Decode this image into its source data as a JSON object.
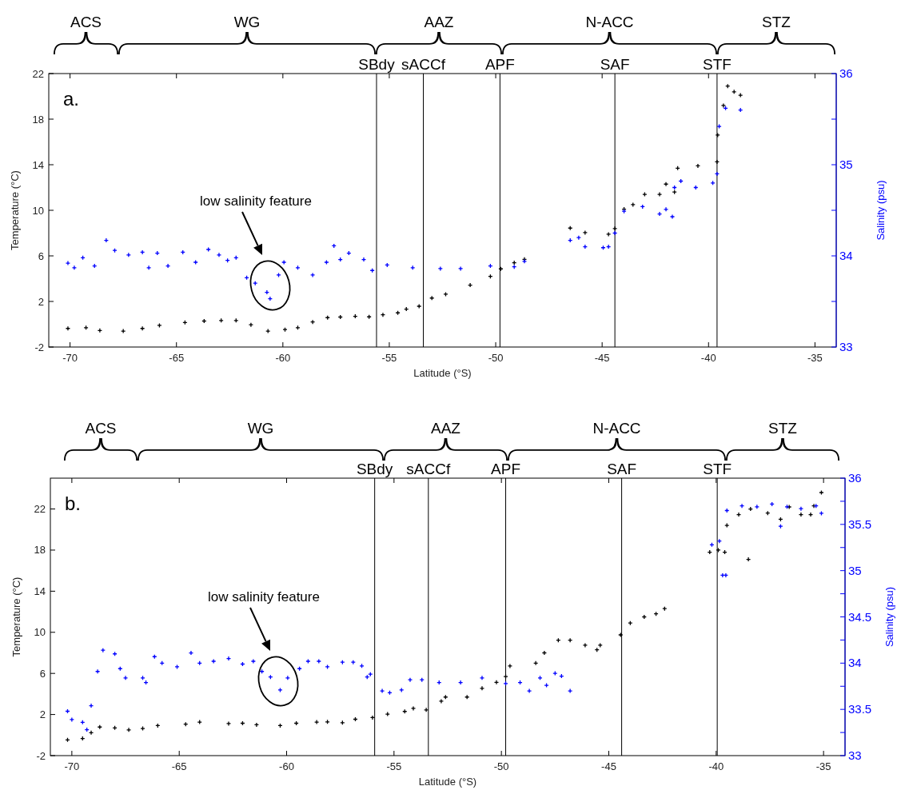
{
  "chart_data": [
    {
      "type": "scatter",
      "xlabel": "Latitude (°S)",
      "ylabel": "Temperature (°C)",
      "y2label": "Salinity (psu)",
      "marker": "cross",
      "xlim": [
        -71,
        -34
      ],
      "xticks": [
        -70,
        -65,
        -60,
        -55,
        -50,
        -45,
        -40,
        -35
      ],
      "ylim": [
        -2,
        22
      ],
      "yticks": [
        -2,
        2,
        6,
        10,
        14,
        18,
        22
      ],
      "y2lim": [
        33,
        36
      ],
      "y2ticks": [
        33,
        {
          "value": 33.5,
          "label": null
        },
        34,
        {
          "value": 34.5,
          "label": null
        },
        35,
        {
          "value": 35.5,
          "label": null
        },
        36
      ],
      "series": [
        {
          "color": "#000000",
          "x": [
            -70.1,
            -69.25,
            -68.6,
            -67.5,
            -66.6,
            -65.8,
            -64.6,
            -63.7,
            -62.9,
            -62.2,
            -61.5,
            -60.7,
            -59.9,
            -59.3,
            -58.6,
            -57.9,
            -57.3,
            -56.6,
            -55.95,
            -55.3,
            -54.6,
            -54.2,
            -53.6,
            -53.0,
            -52.35,
            -51.2,
            -50.25,
            -49.76,
            -49.13,
            -48.65,
            -46.5,
            -45.8,
            -44.7,
            -44.4,
            -43.97,
            -43.55,
            -43.0,
            -42.3,
            -42.0,
            -41.6,
            -41.45,
            -40.5,
            -39.6,
            -39.57,
            -39.3,
            -39.1,
            -38.8,
            -38.5
          ],
          "values": [
            -0.37,
            -0.3,
            -0.55,
            -0.6,
            -0.37,
            -0.1,
            0.15,
            0.28,
            0.33,
            0.33,
            -0.05,
            -0.6,
            -0.47,
            -0.3,
            0.2,
            0.58,
            0.63,
            0.7,
            0.65,
            0.83,
            1.0,
            1.33,
            1.58,
            2.3,
            2.64,
            3.43,
            4.2,
            4.86,
            5.4,
            5.7,
            8.44,
            8.04,
            7.9,
            8.4,
            10.1,
            10.5,
            11.4,
            11.4,
            12.3,
            11.6,
            13.7,
            13.9,
            14.25,
            16.6,
            19.2,
            20.9,
            20.4,
            20.1
          ]
        },
        {
          "color": "#0000ff",
          "axis": "y2",
          "x": [
            -70.1,
            -69.8,
            -69.4,
            -68.85,
            -68.3,
            -67.9,
            -67.25,
            -66.6,
            -66.3,
            -65.9,
            -65.4,
            -64.7,
            -64.1,
            -63.5,
            -63.0,
            -62.6,
            -62.2,
            -61.7,
            -61.3,
            -60.75,
            -60.6,
            -60.2,
            -59.95,
            -59.3,
            -58.6,
            -57.95,
            -57.6,
            -57.3,
            -56.9,
            -56.2,
            -55.8,
            -55.1,
            -53.9,
            -52.6,
            -51.65,
            -50.25,
            -49.13,
            -48.65,
            -46.5,
            -46.1,
            -45.8,
            -44.95,
            -44.7,
            -44.4,
            -43.97,
            -43.1,
            -42.3,
            -42.0,
            -41.7,
            -41.6,
            -41.3,
            -40.6,
            -39.8,
            -39.6,
            -39.5,
            -39.2,
            -38.5
          ],
          "values": [
            33.92,
            33.87,
            33.98,
            33.89,
            34.17,
            34.06,
            34.01,
            34.04,
            33.87,
            34.03,
            33.89,
            34.04,
            33.93,
            34.07,
            34.01,
            33.95,
            33.98,
            33.76,
            33.7,
            33.6,
            33.53,
            33.79,
            33.93,
            33.87,
            33.79,
            33.93,
            34.11,
            33.96,
            34.03,
            33.96,
            33.84,
            33.9,
            33.87,
            33.86,
            33.86,
            33.89,
            33.88,
            33.94,
            34.17,
            34.2,
            34.1,
            34.09,
            34.1,
            34.25,
            34.49,
            34.54,
            34.46,
            34.51,
            34.43,
            34.75,
            34.82,
            34.75,
            34.8,
            34.9,
            35.42,
            35.62,
            35.6
          ]
        }
      ],
      "ref_lines": [
        {
          "axis": "x",
          "value": -55.6,
          "label": "SBdy"
        },
        {
          "axis": "x",
          "value": -53.4,
          "label": "sACCf"
        },
        {
          "axis": "x",
          "value": -49.8,
          "label": "APF"
        },
        {
          "axis": "x",
          "value": -44.4,
          "label": "SAF"
        },
        {
          "axis": "x",
          "value": -39.6,
          "label": "STF"
        }
      ],
      "annotations": [
        "ACS",
        "WG",
        "AAZ",
        "N-ACC",
        "STZ",
        "a.",
        "low salinity feature"
      ]
    },
    {
      "type": "scatter",
      "xlabel": "Latitude (°S)",
      "ylabel": "Temperature (°C)",
      "y2label": "Salinity (psu)",
      "marker": "cross",
      "xlim": [
        -71,
        -34
      ],
      "xticks": [
        -70,
        -65,
        -60,
        -55,
        -50,
        -45,
        -40,
        -35
      ],
      "ylim": [
        -2,
        25
      ],
      "yticks": [
        -2,
        2,
        6,
        10,
        14,
        18,
        22
      ],
      "y2lim": [
        33,
        36
      ],
      "y2ticks": [
        33,
        {
          "value": 33.25,
          "label": null
        },
        33.5,
        {
          "value": 33.75,
          "label": null
        },
        34,
        {
          "value": 34.25,
          "label": null
        },
        34.5,
        {
          "value": 34.75,
          "label": null
        },
        35,
        {
          "value": 35.25,
          "label": null
        },
        35.5,
        {
          "value": 35.75,
          "label": null
        },
        36
      ],
      "series": [
        {
          "color": "#000000",
          "x": [
            -70.2,
            -69.5,
            -69.1,
            -68.7,
            -68.0,
            -67.35,
            -66.7,
            -66.0,
            -64.7,
            -64.05,
            -62.7,
            -62.05,
            -61.4,
            -60.3,
            -59.55,
            -58.6,
            -58.1,
            -57.4,
            -56.8,
            -56.0,
            -55.3,
            -54.5,
            -54.1,
            -53.5,
            -52.8,
            -52.6,
            -51.6,
            -50.9,
            -50.23,
            -49.8,
            -49.6,
            -48.4,
            -48.0,
            -47.35,
            -46.8,
            -46.1,
            -45.55,
            -45.4,
            -44.45,
            -44.0,
            -43.35,
            -42.8,
            -42.4,
            -40.3,
            -39.9,
            -39.6,
            -39.5,
            -38.95,
            -38.5,
            -38.4,
            -37.6,
            -37.0,
            -36.6,
            -36.05,
            -35.6,
            -35.45,
            -35.1
          ],
          "values": [
            -0.47,
            -0.33,
            0.23,
            0.78,
            0.7,
            0.5,
            0.64,
            0.92,
            1.06,
            1.26,
            1.12,
            1.15,
            1.0,
            0.92,
            1.15,
            1.26,
            1.28,
            1.2,
            1.54,
            1.7,
            2.04,
            2.3,
            2.6,
            2.45,
            3.3,
            3.7,
            3.7,
            4.55,
            5.13,
            5.7,
            6.72,
            7.0,
            8.0,
            9.23,
            9.23,
            8.74,
            8.3,
            8.74,
            9.75,
            10.9,
            11.5,
            11.8,
            12.3,
            17.8,
            18.0,
            17.8,
            20.4,
            21.45,
            17.1,
            22.0,
            21.6,
            21.0,
            22.2,
            21.45,
            21.45,
            22.3,
            23.6
          ]
        },
        {
          "color": "#0000ff",
          "axis": "y2",
          "x": [
            -70.2,
            -70.0,
            -69.5,
            -69.3,
            -69.1,
            -68.8,
            -68.55,
            -68.0,
            -67.75,
            -67.5,
            -66.7,
            -66.55,
            -66.15,
            -65.8,
            -65.1,
            -64.45,
            -64.05,
            -63.4,
            -62.7,
            -62.05,
            -61.55,
            -61.15,
            -60.75,
            -60.3,
            -59.95,
            -59.4,
            -59.0,
            -58.5,
            -58.1,
            -57.4,
            -56.9,
            -56.5,
            -56.25,
            -56.1,
            -55.55,
            -55.2,
            -54.65,
            -54.25,
            -53.7,
            -52.9,
            -51.9,
            -50.9,
            -49.8,
            -49.13,
            -48.7,
            -48.2,
            -47.9,
            -47.5,
            -47.2,
            -46.8,
            -40.2,
            -39.85,
            -39.7,
            -39.55,
            -39.5,
            -38.8,
            -38.1,
            -37.4,
            -37.0,
            -36.7,
            -36.05,
            -35.35,
            -35.1
          ],
          "values": [
            33.48,
            33.39,
            33.36,
            33.28,
            33.54,
            33.91,
            34.14,
            34.1,
            33.94,
            33.84,
            33.84,
            33.79,
            34.07,
            34.0,
            33.96,
            34.11,
            34.0,
            34.02,
            34.05,
            33.99,
            34.02,
            33.91,
            33.85,
            33.71,
            33.84,
            33.94,
            34.02,
            34.02,
            33.96,
            34.01,
            34.01,
            33.97,
            33.85,
            33.88,
            33.7,
            33.68,
            33.71,
            33.82,
            33.82,
            33.79,
            33.79,
            33.84,
            33.78,
            33.79,
            33.7,
            33.84,
            33.76,
            33.89,
            33.86,
            33.7,
            35.28,
            35.32,
            34.95,
            34.95,
            35.65,
            35.7,
            35.69,
            35.72,
            35.48,
            35.69,
            35.67,
            35.7,
            35.62
          ]
        }
      ],
      "ref_lines": [
        {
          "axis": "x",
          "value": -55.9,
          "label": "SBdy"
        },
        {
          "axis": "x",
          "value": -53.4,
          "label": "sACCf"
        },
        {
          "axis": "x",
          "value": -49.8,
          "label": "APF"
        },
        {
          "axis": "x",
          "value": -44.4,
          "label": "SAF"
        },
        {
          "axis": "x",
          "value": -39.95,
          "label": "STF"
        }
      ],
      "annotations": [
        "ACS",
        "WG",
        "AAZ",
        "N-ACC",
        "STZ",
        "b.",
        "low salinity feature"
      ]
    }
  ]
}
